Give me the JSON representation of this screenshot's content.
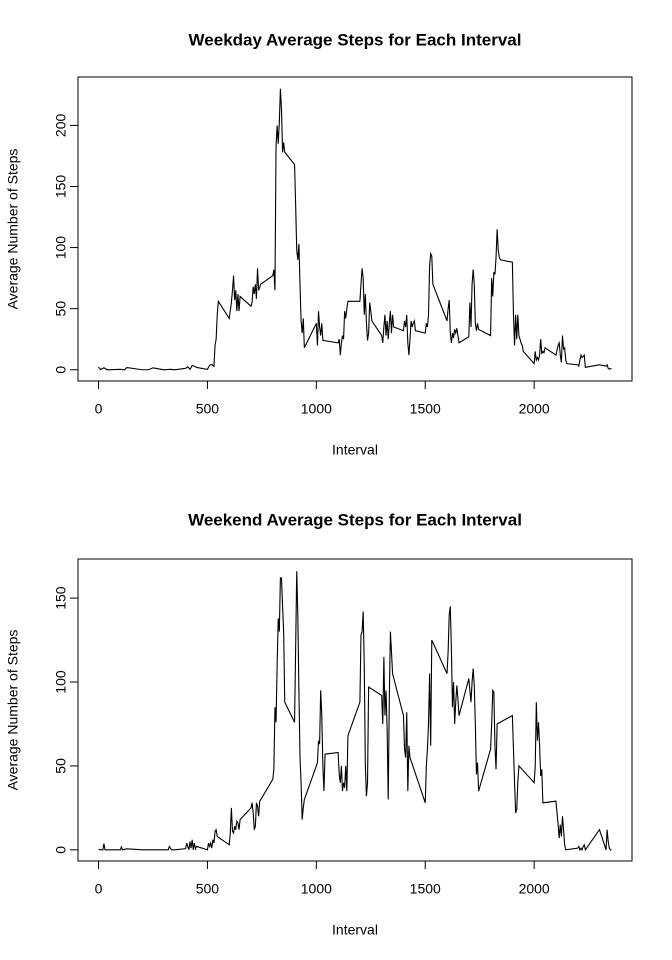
{
  "chart_data": [
    {
      "type": "line",
      "title": "Weekday Average Steps for Each Interval",
      "xlabel": "Interval",
      "ylabel": "Average Number of Steps",
      "color": "#000000",
      "x": [
        0,
        10,
        25,
        40,
        55,
        100,
        120,
        130,
        200,
        230,
        250,
        300,
        330,
        350,
        400,
        410,
        420,
        430,
        440,
        450,
        500,
        510,
        520,
        530,
        535,
        540,
        545,
        550,
        600,
        610,
        615,
        620,
        625,
        630,
        635,
        640,
        645,
        650,
        700,
        705,
        710,
        715,
        720,
        725,
        730,
        735,
        745,
        800,
        805,
        810,
        815,
        820,
        825,
        830,
        835,
        840,
        845,
        850,
        855,
        900,
        905,
        910,
        915,
        920,
        925,
        930,
        935,
        940,
        945,
        1000,
        1005,
        1010,
        1015,
        1020,
        1025,
        1030,
        1100,
        1105,
        1110,
        1115,
        1120,
        1125,
        1130,
        1135,
        1140,
        1145,
        1200,
        1205,
        1210,
        1215,
        1220,
        1225,
        1230,
        1235,
        1240,
        1245,
        1250,
        1255,
        1300,
        1305,
        1310,
        1315,
        1320,
        1325,
        1330,
        1335,
        1340,
        1345,
        1350,
        1355,
        1400,
        1405,
        1410,
        1415,
        1420,
        1425,
        1430,
        1435,
        1440,
        1445,
        1450,
        1455,
        1500,
        1505,
        1510,
        1515,
        1520,
        1525,
        1530,
        1535,
        1600,
        1605,
        1610,
        1615,
        1620,
        1625,
        1630,
        1635,
        1640,
        1645,
        1650,
        1655,
        1700,
        1705,
        1710,
        1715,
        1720,
        1725,
        1730,
        1735,
        1740,
        1745,
        1800,
        1805,
        1810,
        1815,
        1820,
        1825,
        1830,
        1835,
        1840,
        1845,
        1900,
        1905,
        1910,
        1915,
        1920,
        1925,
        1930,
        1940,
        1945,
        1950,
        2000,
        2005,
        2010,
        2015,
        2020,
        2025,
        2030,
        2035,
        2040,
        2045,
        2050,
        2100,
        2105,
        2110,
        2115,
        2120,
        2125,
        2130,
        2135,
        2140,
        2145,
        2150,
        2200,
        2205,
        2210,
        2215,
        2220,
        2225,
        2230,
        2235,
        2300,
        2330,
        2335,
        2340,
        2345,
        2350,
        2355
      ],
      "values": [
        2.3,
        0.2,
        1.6,
        0,
        0.1,
        0.4,
        0,
        1.8,
        0,
        0,
        1.6,
        0,
        0.4,
        0,
        1.2,
        2.5,
        0.3,
        3.5,
        3,
        1.9,
        0.3,
        3.7,
        4.3,
        2.8,
        20,
        25,
        45,
        56,
        42,
        55,
        65,
        77,
        57,
        65,
        48,
        62,
        48,
        60,
        52,
        55,
        68,
        62,
        70,
        58,
        83,
        65,
        70,
        77,
        82,
        65,
        183,
        200,
        185,
        202,
        230,
        213,
        178,
        186,
        178,
        168,
        135,
        98,
        90,
        103,
        70,
        40,
        30,
        42,
        18,
        38,
        20,
        48,
        35,
        28,
        38,
        24,
        22,
        25,
        12,
        22,
        28,
        25,
        48,
        42,
        50,
        56,
        56,
        70,
        83,
        75,
        45,
        62,
        38,
        24,
        30,
        55,
        48,
        40,
        28,
        22,
        35,
        45,
        28,
        40,
        25,
        38,
        48,
        30,
        45,
        35,
        32,
        40,
        35,
        45,
        22,
        12,
        25,
        40,
        35,
        38,
        40,
        32,
        30,
        38,
        35,
        45,
        85,
        95,
        93,
        70,
        40,
        50,
        57,
        30,
        22,
        30,
        26,
        33,
        30,
        34,
        28,
        22,
        27,
        55,
        35,
        70,
        82,
        70,
        38,
        32,
        38,
        33,
        28,
        75,
        60,
        80,
        78,
        92,
        115,
        98,
        92,
        90,
        88,
        45,
        20,
        45,
        25,
        45,
        28,
        22,
        20,
        15,
        5,
        15,
        8,
        10,
        8,
        12,
        25,
        13,
        15,
        14,
        18,
        12,
        16,
        20,
        22,
        12,
        6,
        28,
        17,
        18,
        8,
        5,
        4,
        3,
        8,
        12,
        10,
        11,
        12,
        2,
        4,
        3,
        4,
        1,
        0.5,
        1,
        1
      ],
      "xlim": [
        -94.2,
        2449.2
      ],
      "ylim": [
        -9.2,
        239.6
      ],
      "xticks": [
        0,
        500,
        1000,
        1500,
        2000
      ],
      "yticks": [
        0,
        50,
        100,
        150,
        200
      ]
    },
    {
      "type": "line",
      "title": "Weekend Average Steps for Each Interval",
      "xlabel": "Interval",
      "ylabel": "Average Number of Steps",
      "color": "#000000",
      "x": [
        0,
        10,
        15,
        20,
        25,
        30,
        35,
        100,
        105,
        110,
        130,
        200,
        230,
        300,
        320,
        325,
        330,
        335,
        350,
        400,
        405,
        410,
        415,
        420,
        425,
        430,
        435,
        440,
        445,
        450,
        500,
        505,
        510,
        515,
        520,
        525,
        530,
        535,
        540,
        545,
        600,
        605,
        610,
        615,
        620,
        625,
        630,
        635,
        640,
        645,
        650,
        700,
        705,
        710,
        715,
        720,
        725,
        730,
        735,
        740,
        745,
        800,
        805,
        810,
        815,
        820,
        825,
        830,
        835,
        840,
        845,
        850,
        855,
        900,
        905,
        910,
        915,
        920,
        925,
        930,
        935,
        940,
        945,
        1000,
        1005,
        1010,
        1015,
        1020,
        1025,
        1030,
        1035,
        1040,
        1100,
        1105,
        1110,
        1115,
        1120,
        1125,
        1130,
        1135,
        1140,
        1145,
        1200,
        1205,
        1210,
        1215,
        1220,
        1225,
        1230,
        1235,
        1240,
        1300,
        1305,
        1310,
        1315,
        1320,
        1325,
        1330,
        1335,
        1340,
        1345,
        1350,
        1400,
        1405,
        1410,
        1415,
        1420,
        1425,
        1430,
        1500,
        1505,
        1510,
        1515,
        1520,
        1525,
        1530,
        1600,
        1605,
        1610,
        1615,
        1620,
        1625,
        1630,
        1635,
        1640,
        1645,
        1650,
        1655,
        1700,
        1705,
        1710,
        1715,
        1720,
        1725,
        1730,
        1735,
        1740,
        1745,
        1800,
        1805,
        1810,
        1815,
        1820,
        1825,
        1830,
        1900,
        1905,
        1910,
        1915,
        1920,
        1925,
        1930,
        2000,
        2005,
        2010,
        2015,
        2020,
        2025,
        2030,
        2035,
        2040,
        2100,
        2105,
        2110,
        2115,
        2120,
        2125,
        2130,
        2135,
        2140,
        2145,
        2200,
        2205,
        2210,
        2215,
        2220,
        2225,
        2230,
        2235,
        2300,
        2330,
        2335,
        2340,
        2345,
        2350,
        2355
      ],
      "values": [
        0.2,
        0,
        0,
        0,
        3.7,
        0,
        0,
        0,
        1.7,
        0,
        0.6,
        0,
        0,
        0,
        0,
        2,
        1,
        0,
        0,
        0.7,
        4,
        2,
        0,
        5,
        1,
        6,
        0,
        4,
        0.5,
        2,
        0,
        4,
        2,
        4,
        1,
        6,
        4,
        11,
        12,
        8,
        3,
        10,
        25,
        11,
        10,
        14,
        12,
        17,
        16,
        12,
        18,
        25,
        28,
        22,
        12,
        14,
        28,
        26,
        20,
        29,
        30,
        42,
        48,
        85,
        76,
        110,
        138,
        130,
        162,
        162,
        145,
        130,
        88,
        76,
        120,
        166,
        140,
        95,
        55,
        40,
        18,
        25,
        30,
        50,
        52,
        65,
        63,
        95,
        80,
        50,
        35,
        57,
        58,
        45,
        40,
        50,
        35,
        40,
        37,
        50,
        35,
        68,
        88,
        128,
        130,
        142,
        110,
        50,
        32,
        40,
        97,
        92,
        75,
        115,
        80,
        95,
        72,
        30,
        90,
        130,
        118,
        105,
        80,
        60,
        55,
        82,
        35,
        62,
        55,
        28,
        50,
        60,
        75,
        105,
        62,
        125,
        105,
        118,
        140,
        145,
        120,
        85,
        100,
        75,
        88,
        98,
        90,
        80,
        102,
        95,
        88,
        100,
        108,
        98,
        75,
        45,
        52,
        35,
        60,
        75,
        95,
        94,
        62,
        48,
        75,
        80,
        60,
        40,
        22,
        24,
        40,
        50,
        40,
        50,
        88,
        65,
        76,
        62,
        44,
        48,
        28,
        29,
        22,
        15,
        7,
        15,
        8,
        20,
        12,
        3,
        0,
        1,
        2,
        0,
        1,
        0,
        2,
        3,
        0,
        12,
        0,
        12,
        5,
        1,
        0,
        0
      ],
      "xlim": [
        -94.2,
        2449.2
      ],
      "ylim": [
        -6.66,
        173.3
      ],
      "xticks": [
        0,
        500,
        1000,
        1500,
        2000
      ],
      "yticks": [
        0,
        50,
        100,
        150
      ]
    }
  ]
}
